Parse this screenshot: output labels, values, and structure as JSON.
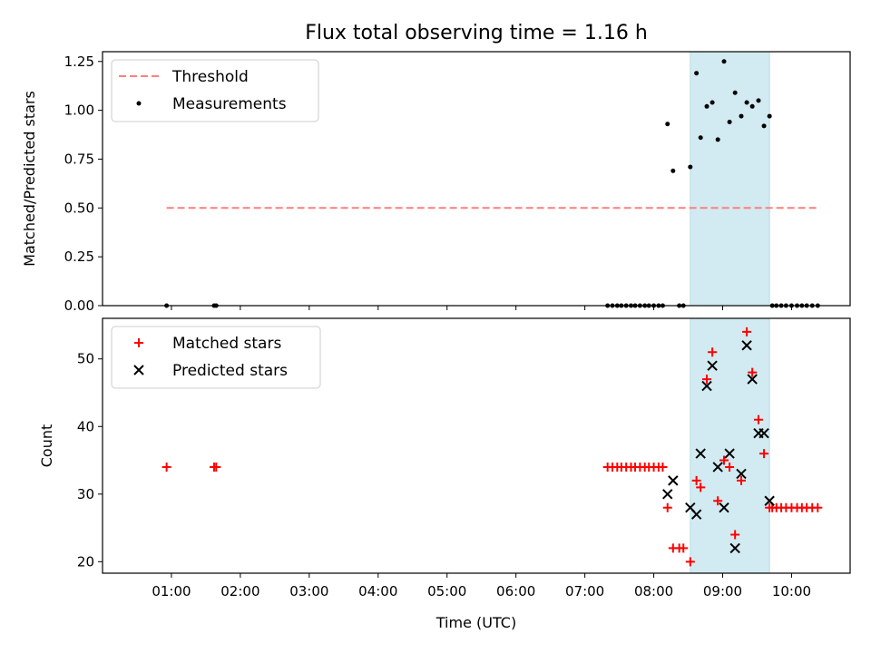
{
  "chart_data": [
    {
      "type": "scatter",
      "title": "Flux total observing time = 1.16 h",
      "ylabel": "Matched/Predicted stars",
      "xlabel": "",
      "x_unit": "time of day (UTC, hours)",
      "xlim": [
        0.0,
        10.85
      ],
      "ylim": [
        0.0,
        1.3
      ],
      "yticks": [
        "0.00",
        "0.25",
        "0.50",
        "0.75",
        "1.00",
        "1.25"
      ],
      "xticks": [
        "01:00",
        "02:00",
        "03:00",
        "04:00",
        "05:00",
        "06:00",
        "07:00",
        "08:00",
        "09:00",
        "10:00"
      ],
      "shaded_span": {
        "from": 8.53,
        "to": 9.68,
        "color": "#add8e6"
      },
      "legend": {
        "position": "upper left",
        "entries": [
          "Threshold",
          "Measurements"
        ]
      },
      "series": [
        {
          "name": "Threshold",
          "kind": "line",
          "style": "dashed",
          "color": "#ff7f7f",
          "x": [
            0.93,
            10.38
          ],
          "y": [
            0.5,
            0.5
          ]
        },
        {
          "name": "Measurements",
          "kind": "scatter",
          "marker": "dot",
          "color": "#000000",
          "x": [
            0.93,
            1.62,
            1.65,
            7.33,
            7.4,
            7.47,
            7.53,
            7.6,
            7.67,
            7.73,
            7.8,
            7.87,
            7.93,
            8.0,
            8.07,
            8.13,
            8.2,
            8.28,
            8.37,
            8.43,
            8.53,
            8.62,
            8.68,
            8.77,
            8.85,
            8.93,
            9.02,
            9.1,
            9.18,
            9.27,
            9.35,
            9.43,
            9.52,
            9.6,
            9.68,
            9.72,
            9.78,
            9.85,
            9.92,
            10.0,
            10.08,
            10.15,
            10.22,
            10.3,
            10.38
          ],
          "y": [
            0,
            0,
            0,
            0,
            0,
            0,
            0,
            0,
            0,
            0,
            0,
            0,
            0,
            0,
            0,
            0,
            0.93,
            0.69,
            0,
            0,
            0.71,
            1.19,
            0.86,
            1.02,
            1.04,
            0.85,
            1.25,
            0.94,
            1.09,
            0.97,
            1.04,
            1.02,
            1.05,
            0.92,
            0.97,
            0,
            0,
            0,
            0,
            0,
            0,
            0,
            0,
            0,
            0
          ]
        }
      ]
    },
    {
      "type": "scatter",
      "title": "",
      "ylabel": "Count",
      "xlabel": "Time (UTC)",
      "x_unit": "time of day (UTC, hours)",
      "xlim": [
        0.0,
        10.85
      ],
      "ylim": [
        18.3,
        56
      ],
      "yticks": [
        "20",
        "30",
        "40",
        "50"
      ],
      "xticks": [
        "01:00",
        "02:00",
        "03:00",
        "04:00",
        "05:00",
        "06:00",
        "07:00",
        "08:00",
        "09:00",
        "10:00"
      ],
      "shaded_span": {
        "from": 8.53,
        "to": 9.68,
        "color": "#add8e6"
      },
      "legend": {
        "position": "upper left",
        "entries": [
          "Matched stars",
          "Predicted stars"
        ]
      },
      "series": [
        {
          "name": "Matched stars",
          "kind": "scatter",
          "marker": "plus",
          "color": "#ff0000",
          "x": [
            0.93,
            1.62,
            1.65,
            7.33,
            7.4,
            7.47,
            7.53,
            7.6,
            7.67,
            7.73,
            7.8,
            7.87,
            7.93,
            8.0,
            8.07,
            8.13,
            8.2,
            8.28,
            8.37,
            8.43,
            8.53,
            8.62,
            8.68,
            8.77,
            8.85,
            8.93,
            9.02,
            9.1,
            9.18,
            9.27,
            9.35,
            9.43,
            9.52,
            9.6,
            9.68,
            9.72,
            9.78,
            9.85,
            9.92,
            10.0,
            10.08,
            10.15,
            10.22,
            10.3,
            10.38
          ],
          "y": [
            34,
            34,
            34,
            34,
            34,
            34,
            34,
            34,
            34,
            34,
            34,
            34,
            34,
            34,
            34,
            34,
            28,
            22,
            22,
            22,
            20,
            32,
            31,
            47,
            51,
            29,
            35,
            34,
            24,
            32,
            54,
            48,
            41,
            36,
            28,
            28,
            28,
            28,
            28,
            28,
            28,
            28,
            28,
            28,
            28
          ]
        },
        {
          "name": "Predicted stars",
          "kind": "scatter",
          "marker": "x",
          "color": "#000000",
          "x": [
            8.2,
            8.28,
            8.53,
            8.62,
            8.68,
            8.77,
            8.85,
            8.93,
            9.02,
            9.1,
            9.18,
            9.27,
            9.35,
            9.43,
            9.52,
            9.6,
            9.68
          ],
          "y": [
            30,
            32,
            28,
            27,
            36,
            46,
            49,
            34,
            28,
            36,
            22,
            33,
            52,
            47,
            39,
            39,
            29
          ]
        }
      ]
    }
  ]
}
